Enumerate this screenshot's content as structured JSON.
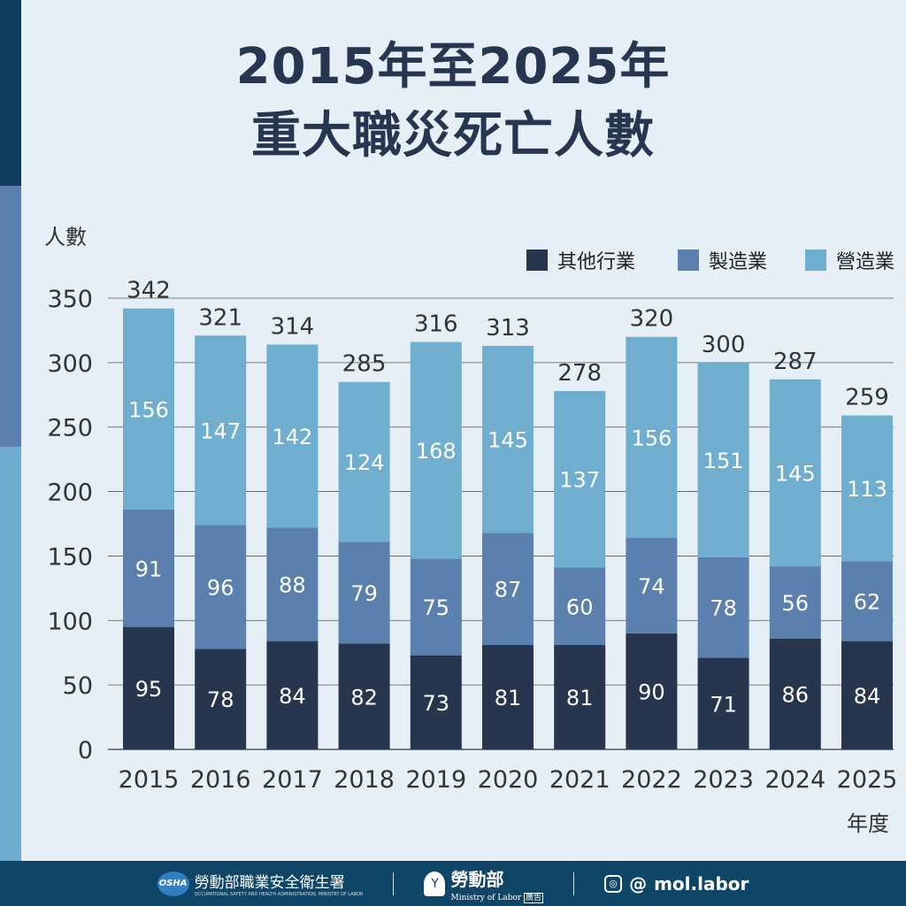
{
  "title_line1": "2015年至2025年",
  "title_line2": "重大職災死亡人數",
  "colors": {
    "other": "#27354f",
    "manufacturing": "#5b80ae",
    "construction": "#70aed0"
  },
  "chart_data": {
    "type": "bar",
    "stacked": true,
    "title": "2015年至2025年 重大職災死亡人數",
    "xlabel": "年度",
    "ylabel": "人數",
    "ylim": [
      0,
      350
    ],
    "yticks": [
      0,
      50,
      100,
      150,
      200,
      250,
      300,
      350
    ],
    "legend_position": "top-right",
    "categories": [
      "2015",
      "2016",
      "2017",
      "2018",
      "2019",
      "2020",
      "2021",
      "2022",
      "2023",
      "2024",
      "2025"
    ],
    "series": [
      {
        "name": "其他行業",
        "values": [
          95,
          78,
          84,
          82,
          73,
          81,
          81,
          90,
          71,
          86,
          84
        ]
      },
      {
        "name": "製造業",
        "values": [
          91,
          96,
          88,
          79,
          75,
          87,
          60,
          74,
          78,
          56,
          62
        ]
      },
      {
        "name": "營造業",
        "values": [
          156,
          147,
          142,
          124,
          168,
          145,
          137,
          156,
          151,
          145,
          113
        ]
      }
    ],
    "totals": [
      342,
      321,
      314,
      285,
      316,
      313,
      278,
      320,
      300,
      287,
      259
    ]
  },
  "footer": {
    "osha_logo": "OSHA",
    "osha_name": "勞動部職業安全衛生署",
    "osha_en": "OCCUPATIONAL SAFETY AND HEALTH ADMINISTRATION, MINISTRY OF LABOR",
    "mol_name": "勞動部",
    "mol_en": "Ministry of Labor",
    "ad_tag": "廣告",
    "social_handle": "mol.labor"
  }
}
